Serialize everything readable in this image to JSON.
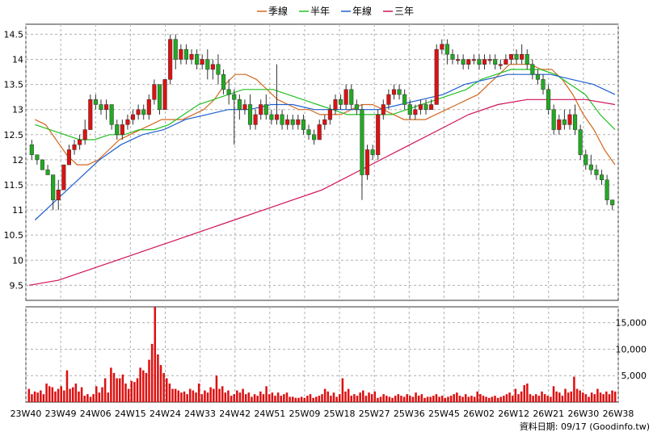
{
  "chart_data": [
    {
      "type": "candlestick",
      "legend": [
        {
          "name": "季線",
          "color": "#d2691e"
        },
        {
          "name": "半年",
          "color": "#22c022"
        },
        {
          "name": "年線",
          "color": "#1e5fd0"
        },
        {
          "name": "三年",
          "color": "#d0105a"
        }
      ],
      "legend_placement": "top-center",
      "ylim": [
        9.2,
        14.7
      ],
      "yticks": [
        "9.5",
        "10",
        "10.5",
        "11",
        "11.5",
        "12",
        "12.5",
        "13",
        "13.5",
        "14",
        "14.5"
      ],
      "grid": true,
      "up_color": "#dd1111",
      "down_color": "#22aa22",
      "candles_ohlc": [
        [
          12.3,
          12.4,
          12.0,
          12.1
        ],
        [
          12.1,
          12.1,
          11.9,
          12.0
        ],
        [
          12.0,
          12.0,
          11.8,
          11.8
        ],
        [
          11.8,
          11.9,
          11.7,
          11.7
        ],
        [
          11.7,
          11.7,
          11.0,
          11.2
        ],
        [
          11.2,
          11.6,
          11.0,
          11.4
        ],
        [
          11.4,
          11.9,
          11.4,
          11.9
        ],
        [
          11.9,
          12.3,
          11.9,
          12.2
        ],
        [
          12.2,
          12.4,
          12.1,
          12.3
        ],
        [
          12.3,
          12.5,
          12.2,
          12.4
        ],
        [
          12.4,
          12.8,
          12.3,
          12.6
        ],
        [
          12.6,
          13.3,
          12.6,
          13.2
        ],
        [
          13.2,
          13.3,
          13.0,
          13.1
        ],
        [
          13.1,
          13.2,
          12.9,
          13.0
        ],
        [
          13.0,
          13.2,
          12.8,
          13.1
        ],
        [
          13.1,
          13.1,
          12.6,
          12.7
        ],
        [
          12.7,
          12.8,
          12.4,
          12.5
        ],
        [
          12.5,
          12.8,
          12.4,
          12.7
        ],
        [
          12.7,
          12.9,
          12.6,
          12.8
        ],
        [
          12.8,
          13.0,
          12.7,
          12.9
        ],
        [
          12.9,
          13.1,
          12.8,
          13.0
        ],
        [
          13.0,
          13.1,
          12.8,
          12.9
        ],
        [
          12.9,
          13.3,
          12.8,
          13.2
        ],
        [
          13.2,
          13.6,
          13.1,
          13.5
        ],
        [
          13.5,
          13.5,
          12.9,
          13.0
        ],
        [
          13.0,
          13.6,
          13.0,
          13.6
        ],
        [
          13.6,
          14.5,
          13.5,
          14.4
        ],
        [
          14.4,
          14.5,
          13.8,
          14.0
        ],
        [
          14.0,
          14.3,
          13.9,
          14.2
        ],
        [
          14.2,
          14.3,
          13.9,
          14.0
        ],
        [
          14.0,
          14.2,
          13.9,
          14.1
        ],
        [
          14.1,
          14.2,
          13.8,
          13.9
        ],
        [
          13.9,
          14.1,
          13.8,
          14.0
        ],
        [
          14.0,
          14.2,
          13.6,
          13.8
        ],
        [
          13.8,
          14.0,
          13.6,
          13.9
        ],
        [
          13.9,
          14.1,
          13.5,
          13.7
        ],
        [
          13.7,
          13.8,
          13.3,
          13.4
        ],
        [
          13.4,
          13.6,
          13.1,
          13.3
        ],
        [
          13.3,
          13.4,
          12.3,
          13.2
        ],
        [
          13.2,
          13.3,
          12.8,
          13.0
        ],
        [
          13.0,
          13.2,
          12.9,
          13.1
        ],
        [
          13.1,
          13.3,
          12.6,
          12.7
        ],
        [
          12.7,
          13.0,
          12.6,
          12.9
        ],
        [
          12.9,
          13.2,
          12.8,
          13.1
        ],
        [
          13.1,
          13.3,
          12.8,
          12.9
        ],
        [
          12.9,
          13.0,
          12.7,
          12.8
        ],
        [
          12.8,
          13.9,
          12.7,
          12.9
        ],
        [
          12.9,
          13.0,
          12.6,
          12.7
        ],
        [
          12.7,
          12.9,
          12.6,
          12.8
        ],
        [
          12.8,
          12.9,
          12.6,
          12.7
        ],
        [
          12.7,
          12.9,
          12.6,
          12.8
        ],
        [
          12.8,
          12.9,
          12.5,
          12.6
        ],
        [
          12.6,
          12.7,
          12.4,
          12.5
        ],
        [
          12.5,
          12.6,
          12.3,
          12.4
        ],
        [
          12.4,
          12.8,
          12.4,
          12.7
        ],
        [
          12.7,
          12.9,
          12.6,
          12.8
        ],
        [
          12.8,
          13.1,
          12.7,
          13.0
        ],
        [
          13.0,
          13.3,
          12.9,
          13.2
        ],
        [
          13.2,
          13.3,
          13.0,
          13.1
        ],
        [
          13.1,
          13.5,
          13.0,
          13.4
        ],
        [
          13.4,
          13.5,
          13.0,
          13.1
        ],
        [
          13.1,
          13.2,
          12.9,
          13.0
        ],
        [
          13.0,
          13.1,
          11.2,
          11.7
        ],
        [
          11.7,
          12.3,
          11.6,
          12.2
        ],
        [
          12.2,
          12.3,
          12.0,
          12.1
        ],
        [
          12.1,
          13.0,
          12.0,
          12.9
        ],
        [
          12.9,
          13.2,
          12.8,
          13.1
        ],
        [
          13.1,
          13.4,
          13.0,
          13.3
        ],
        [
          13.3,
          13.5,
          13.2,
          13.4
        ],
        [
          13.4,
          13.5,
          13.2,
          13.3
        ],
        [
          13.3,
          13.4,
          13.0,
          13.1
        ],
        [
          13.1,
          13.2,
          12.8,
          12.9
        ],
        [
          12.9,
          13.1,
          12.8,
          13.0
        ],
        [
          13.0,
          13.2,
          12.9,
          13.1
        ],
        [
          13.1,
          13.2,
          12.9,
          13.0
        ],
        [
          13.0,
          13.2,
          13.0,
          13.1
        ],
        [
          13.1,
          14.3,
          13.1,
          14.2
        ],
        [
          14.2,
          14.4,
          14.1,
          14.3
        ],
        [
          14.3,
          14.4,
          13.9,
          14.1
        ],
        [
          14.1,
          14.2,
          13.9,
          14.0
        ],
        [
          14.0,
          14.1,
          13.9,
          14.0
        ],
        [
          14.0,
          14.1,
          13.8,
          13.9
        ],
        [
          13.9,
          14.0,
          13.8,
          14.0
        ],
        [
          14.0,
          14.1,
          13.9,
          14.0
        ],
        [
          14.0,
          14.1,
          13.8,
          13.9
        ],
        [
          13.9,
          14.1,
          13.8,
          14.0
        ],
        [
          14.0,
          14.1,
          13.9,
          14.0
        ],
        [
          14.0,
          14.1,
          13.8,
          13.9
        ],
        [
          13.9,
          14.0,
          13.8,
          13.9
        ],
        [
          13.9,
          14.1,
          13.9,
          14.0
        ],
        [
          14.0,
          14.1,
          13.9,
          14.1
        ],
        [
          14.1,
          14.2,
          13.9,
          14.0
        ],
        [
          14.0,
          14.3,
          13.9,
          14.1
        ],
        [
          14.1,
          14.2,
          13.8,
          13.9
        ],
        [
          13.9,
          14.0,
          13.6,
          13.7
        ],
        [
          13.7,
          13.8,
          13.5,
          13.6
        ],
        [
          13.6,
          13.7,
          13.3,
          13.4
        ],
        [
          13.4,
          13.5,
          12.9,
          13.0
        ],
        [
          13.0,
          13.1,
          12.5,
          12.6
        ],
        [
          12.6,
          12.9,
          12.5,
          12.8
        ],
        [
          12.8,
          13.0,
          12.6,
          12.7
        ],
        [
          12.7,
          13.0,
          12.6,
          12.9
        ],
        [
          12.9,
          13.1,
          12.5,
          12.6
        ],
        [
          12.6,
          12.7,
          12.0,
          12.1
        ],
        [
          12.1,
          12.2,
          11.8,
          11.9
        ],
        [
          11.9,
          12.1,
          11.7,
          11.8
        ],
        [
          11.8,
          11.9,
          11.6,
          11.7
        ],
        [
          11.7,
          11.8,
          11.5,
          11.6
        ],
        [
          11.6,
          11.7,
          11.1,
          11.2
        ],
        [
          11.2,
          11.2,
          11.0,
          11.1
        ]
      ],
      "ma_series": [
        {
          "name": "季線",
          "values": [
            12.8,
            12.7,
            12.4,
            12.1,
            11.9,
            11.9,
            12.0,
            12.2,
            12.4,
            12.5,
            12.6,
            12.7,
            12.8,
            12.8,
            12.8,
            12.9,
            13.0,
            13.2,
            13.5,
            13.7,
            13.7,
            13.6,
            13.4,
            13.2,
            13.1,
            13.0,
            13.0,
            12.9,
            12.9,
            12.9,
            13.0,
            13.1,
            13.1,
            13.0,
            12.9,
            12.8,
            12.8,
            12.8,
            12.9,
            13.0,
            13.1,
            13.2,
            13.3,
            13.5,
            13.7,
            13.9,
            13.9,
            13.9,
            13.8,
            13.8,
            13.6,
            13.3,
            12.9,
            12.6,
            12.2,
            11.9
          ]
        },
        {
          "name": "半年",
          "values": [
            12.7,
            12.6,
            12.5,
            12.4,
            12.4,
            12.5,
            12.5,
            12.6,
            12.6,
            12.7,
            12.9,
            13.1,
            13.2,
            13.3,
            13.4,
            13.4,
            13.4,
            13.3,
            13.2,
            13.1,
            13.0,
            12.9,
            12.9,
            12.9,
            12.9,
            13.0,
            13.1,
            13.2,
            13.3,
            13.4,
            13.6,
            13.7,
            13.8,
            13.8,
            13.8,
            13.7,
            13.5,
            13.3,
            12.9,
            12.6
          ]
        },
        {
          "name": "年線",
          "values": [
            10.8,
            11.2,
            11.6,
            12.0,
            12.3,
            12.5,
            12.6,
            12.8,
            12.9,
            13.0,
            13.0,
            13.1,
            13.1,
            13.0,
            13.0,
            13.0,
            13.0,
            13.1,
            13.2,
            13.3,
            13.5,
            13.6,
            13.7,
            13.7,
            13.7,
            13.6,
            13.5,
            13.3
          ]
        },
        {
          "name": "三年",
          "values": [
            9.5,
            9.6,
            9.8,
            10.0,
            10.2,
            10.4,
            10.6,
            10.8,
            11.0,
            11.2,
            11.4,
            11.7,
            12.0,
            12.3,
            12.6,
            12.9,
            13.1,
            13.2,
            13.2,
            13.2,
            13.1
          ]
        }
      ]
    },
    {
      "type": "bar",
      "ylim": [
        0,
        18000
      ],
      "yticks": [
        "5,000",
        "10,000",
        "15,000"
      ],
      "grid": true,
      "bar_color": "#dd1111",
      "values": [
        2500,
        1500,
        2000,
        1800,
        2200,
        1500,
        3500,
        3000,
        2800,
        2000,
        2500,
        3000,
        2200,
        6000,
        2500,
        2800,
        3500,
        2000,
        2800,
        1200,
        1500,
        1000,
        1500,
        3000,
        1800,
        2800,
        4500,
        1800,
        6500,
        5500,
        4500,
        4500,
        5200,
        3500,
        2500,
        4000,
        3800,
        4500,
        6500,
        6000,
        5500,
        8000,
        11000,
        18000,
        9000,
        7000,
        5500,
        4500,
        3500,
        2500,
        2500,
        2200,
        1800,
        2000,
        1500,
        2500,
        2200,
        1800,
        3500,
        1500,
        2200,
        1800,
        2800,
        2500,
        5000,
        2500,
        3000,
        1800,
        2200,
        1200,
        1500,
        2200,
        1800,
        2500,
        1500,
        1800,
        1000,
        1500,
        1200,
        2000,
        1500,
        3000,
        1500,
        1800,
        1200,
        1800,
        1200,
        1500,
        1800,
        1000,
        1000,
        800,
        800,
        1000,
        800,
        1200,
        1500,
        800,
        1000,
        1200,
        1500,
        2500,
        2000,
        1200,
        1800,
        1000,
        1500,
        4500,
        2000,
        2500,
        1200,
        1500,
        1200,
        1800,
        2200,
        1200,
        1800,
        1500,
        2000,
        800,
        1000,
        1500,
        1200,
        1000,
        800,
        1200,
        1500,
        1200,
        1000,
        1500,
        1200,
        1000,
        1800,
        1200,
        1500,
        800,
        1000,
        1000,
        1200,
        1500,
        1000,
        1200,
        800,
        1000,
        1200,
        1500,
        1800,
        1200,
        1000,
        1500,
        1000,
        1200,
        1000,
        2000,
        1500,
        1200,
        1000,
        800,
        1000,
        1200,
        800,
        1000,
        1200,
        1500,
        1800,
        1200,
        2500,
        1500,
        2000,
        3200,
        3500,
        1500,
        1200,
        1500,
        1200,
        2000,
        1500,
        1200,
        1000,
        3000,
        2000,
        1800,
        1200,
        2500,
        1800,
        2000,
        4800,
        2500,
        2200,
        1800,
        1500,
        1000,
        1800,
        1500,
        2500,
        1800,
        1500,
        2000,
        1500,
        2200,
        2000
      ]
    }
  ],
  "x_tick_labels": [
    "23W40",
    "23W49",
    "24W06",
    "24W15",
    "24W24",
    "24W33",
    "24W42",
    "24W51",
    "25W09",
    "25W18",
    "25W27",
    "25W36",
    "25W45",
    "26W02",
    "26W12",
    "26W21",
    "26W30",
    "26W38"
  ],
  "footer_text": "資料日期: 09/17 (Goodinfo.tw)"
}
